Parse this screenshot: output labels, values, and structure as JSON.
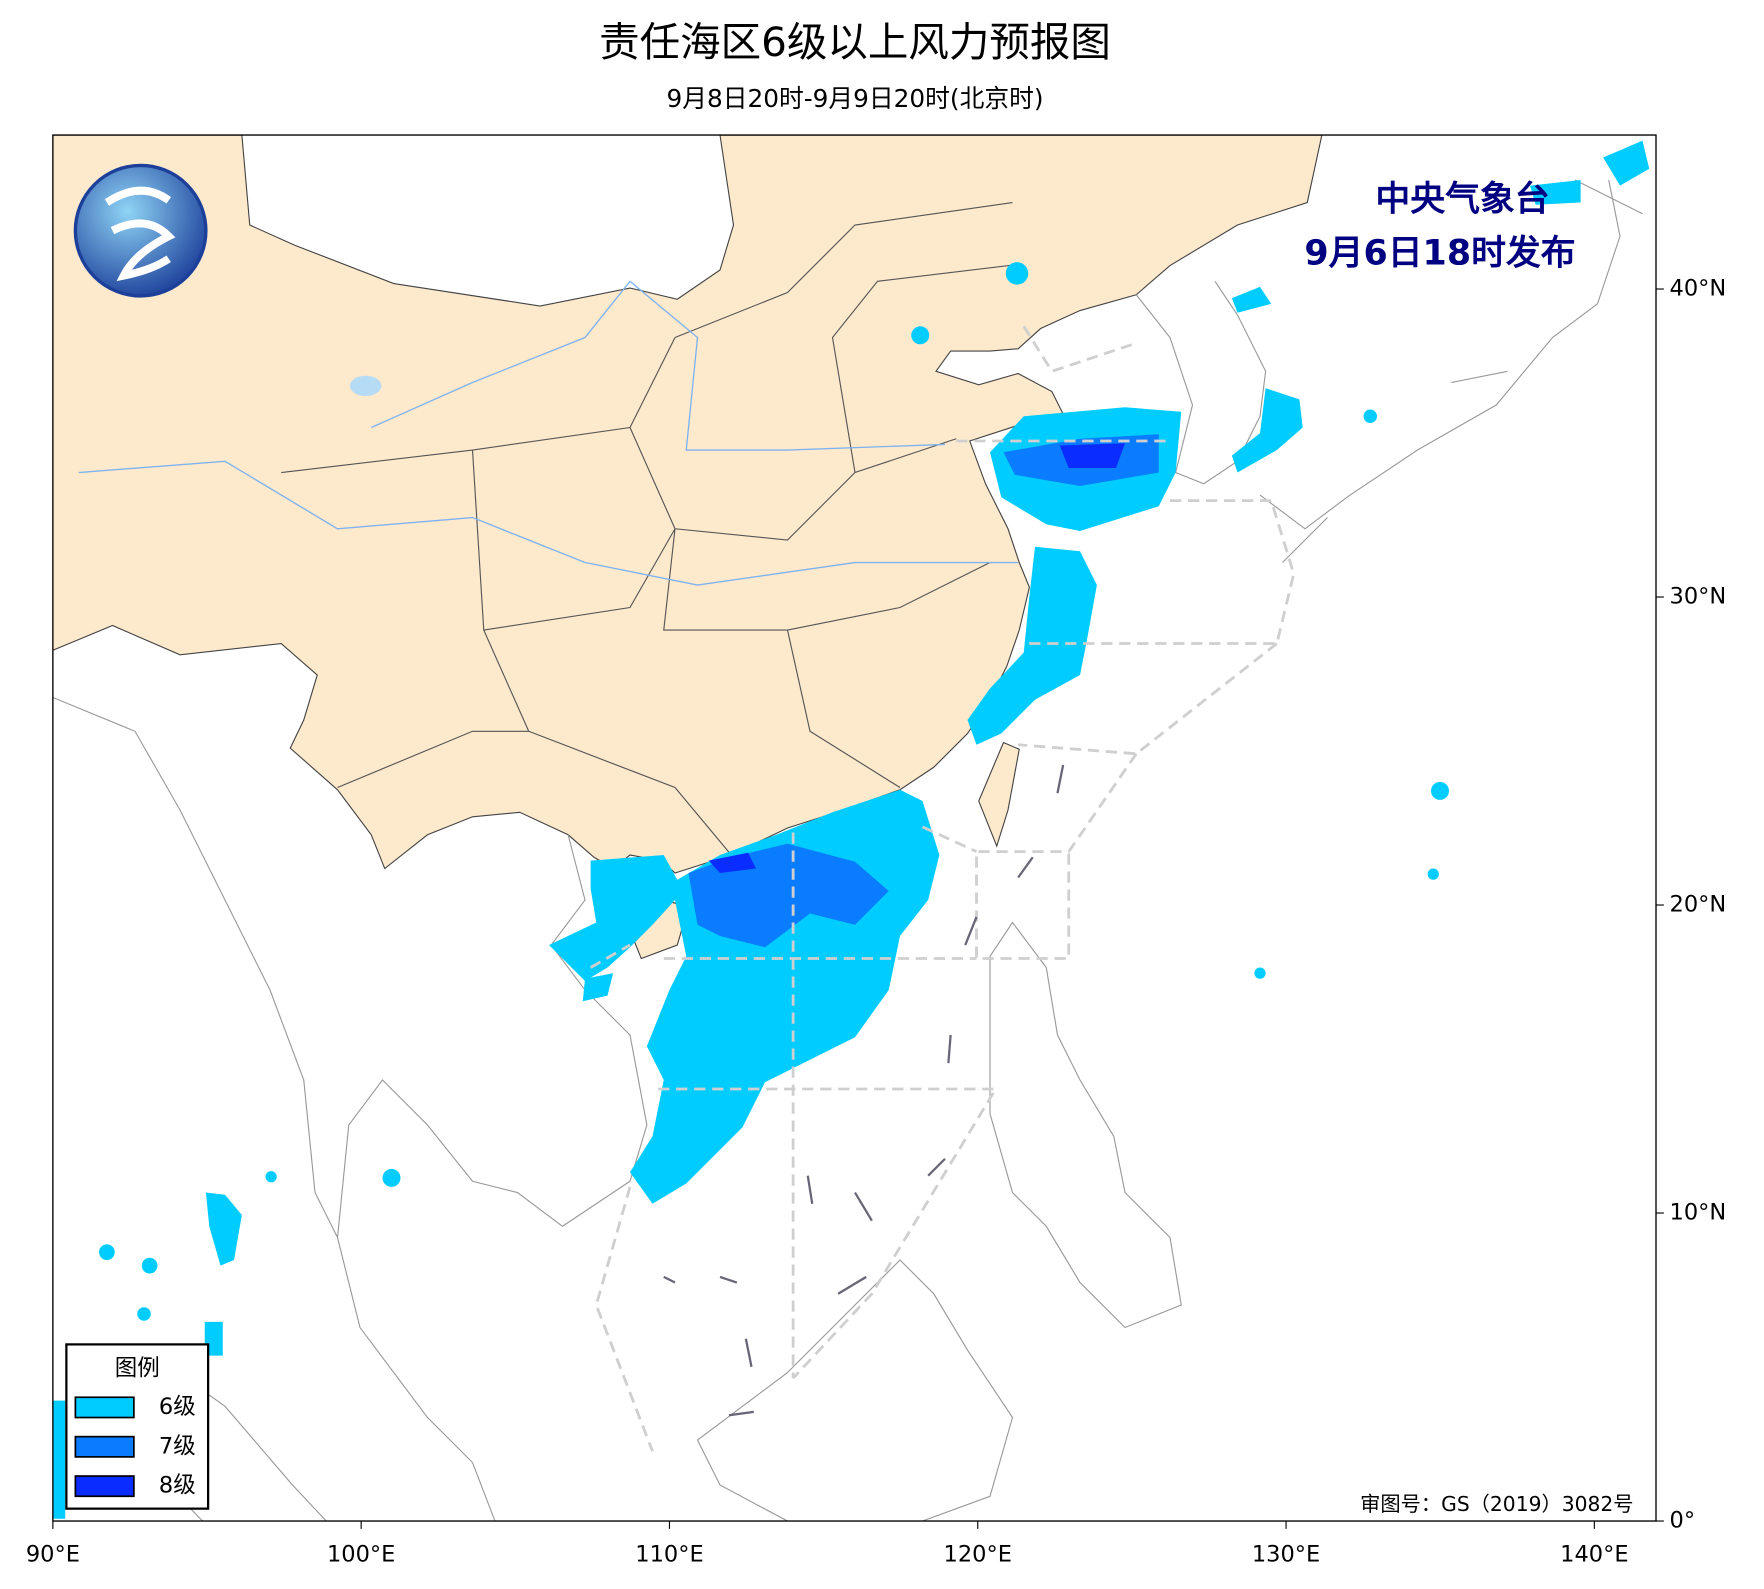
{
  "header": {
    "title": "责任海区6级以上风力预报图",
    "subtitle": "9月8日20时-9月9日20时(北京时)"
  },
  "issuer": {
    "name": "中央气象台",
    "issued": "9月6日18时发布"
  },
  "map": {
    "xlim": [
      90,
      142
    ],
    "ylim": [
      0,
      45
    ],
    "xticks": [
      {
        "value": 90,
        "label": "90°E"
      },
      {
        "value": 100,
        "label": "100°E"
      },
      {
        "value": 110,
        "label": "110°E"
      },
      {
        "value": 120,
        "label": "120°E"
      },
      {
        "value": 130,
        "label": "130°E"
      },
      {
        "value": 140,
        "label": "140°E"
      }
    ],
    "yticks": [
      {
        "value": 0,
        "label": "0°"
      },
      {
        "value": 10,
        "label": "10°N"
      },
      {
        "value": 20,
        "label": "20°N"
      },
      {
        "value": 30,
        "label": "30°N"
      },
      {
        "value": 40,
        "label": "40°N"
      }
    ]
  },
  "legend": {
    "title": "图例",
    "items": [
      {
        "label": "6级",
        "color": "#00ccff"
      },
      {
        "label": "7级",
        "color": "#0a7cff"
      },
      {
        "label": "8级",
        "color": "#0a2cff"
      }
    ]
  },
  "approval": "审图号：GS（2019）3082号"
}
